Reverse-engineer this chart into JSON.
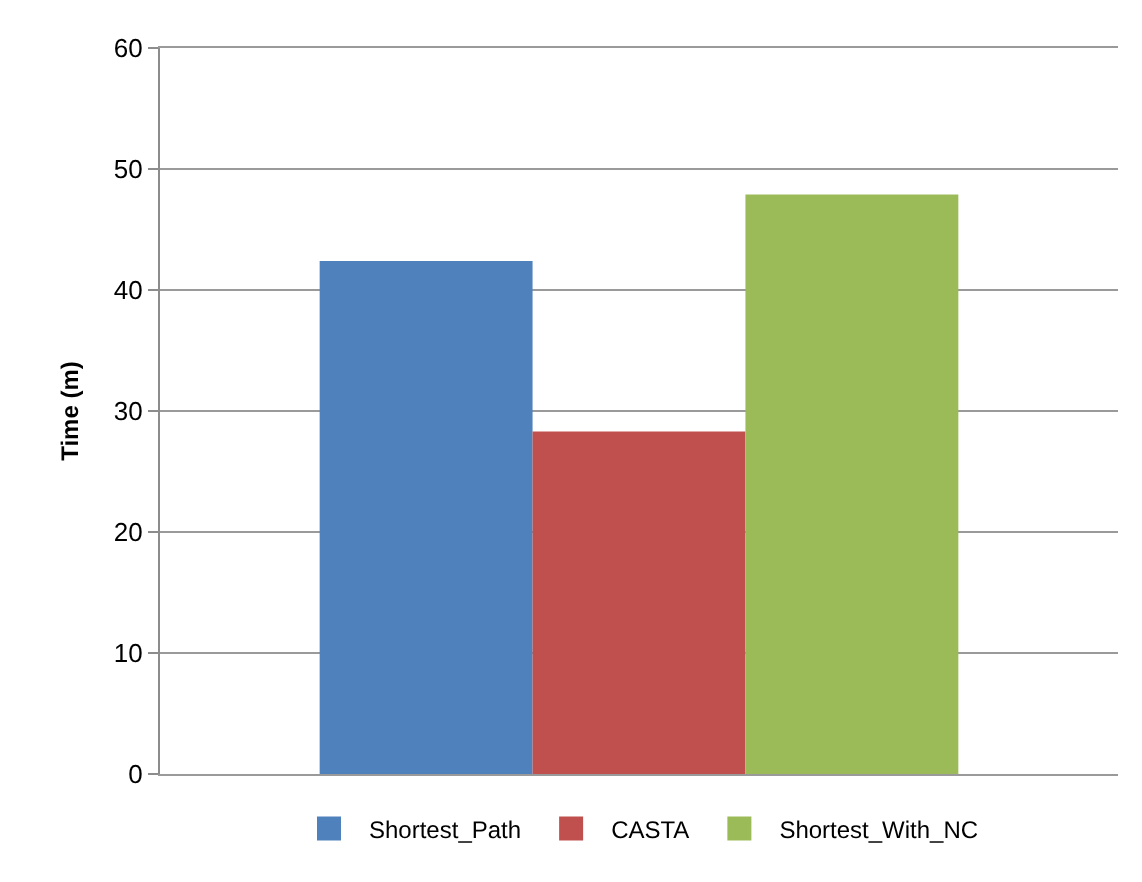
{
  "chart_data": {
    "type": "bar",
    "ylabel": "Time (m)",
    "categories": [
      null
    ],
    "series": [
      {
        "name": "Shortest_Path",
        "color": "#4f81bd",
        "values": [
          42.4
        ]
      },
      {
        "name": "CASTA",
        "color": "#c0504d",
        "values": [
          28.3
        ]
      },
      {
        "name": "Shortest_With_NC",
        "color": "#9bbb59",
        "values": [
          47.9
        ]
      }
    ],
    "ylim": [
      0,
      60
    ],
    "yticks": [
      0,
      10,
      20,
      30,
      40,
      50,
      60
    ],
    "grid": "y",
    "legend": "bottom"
  }
}
